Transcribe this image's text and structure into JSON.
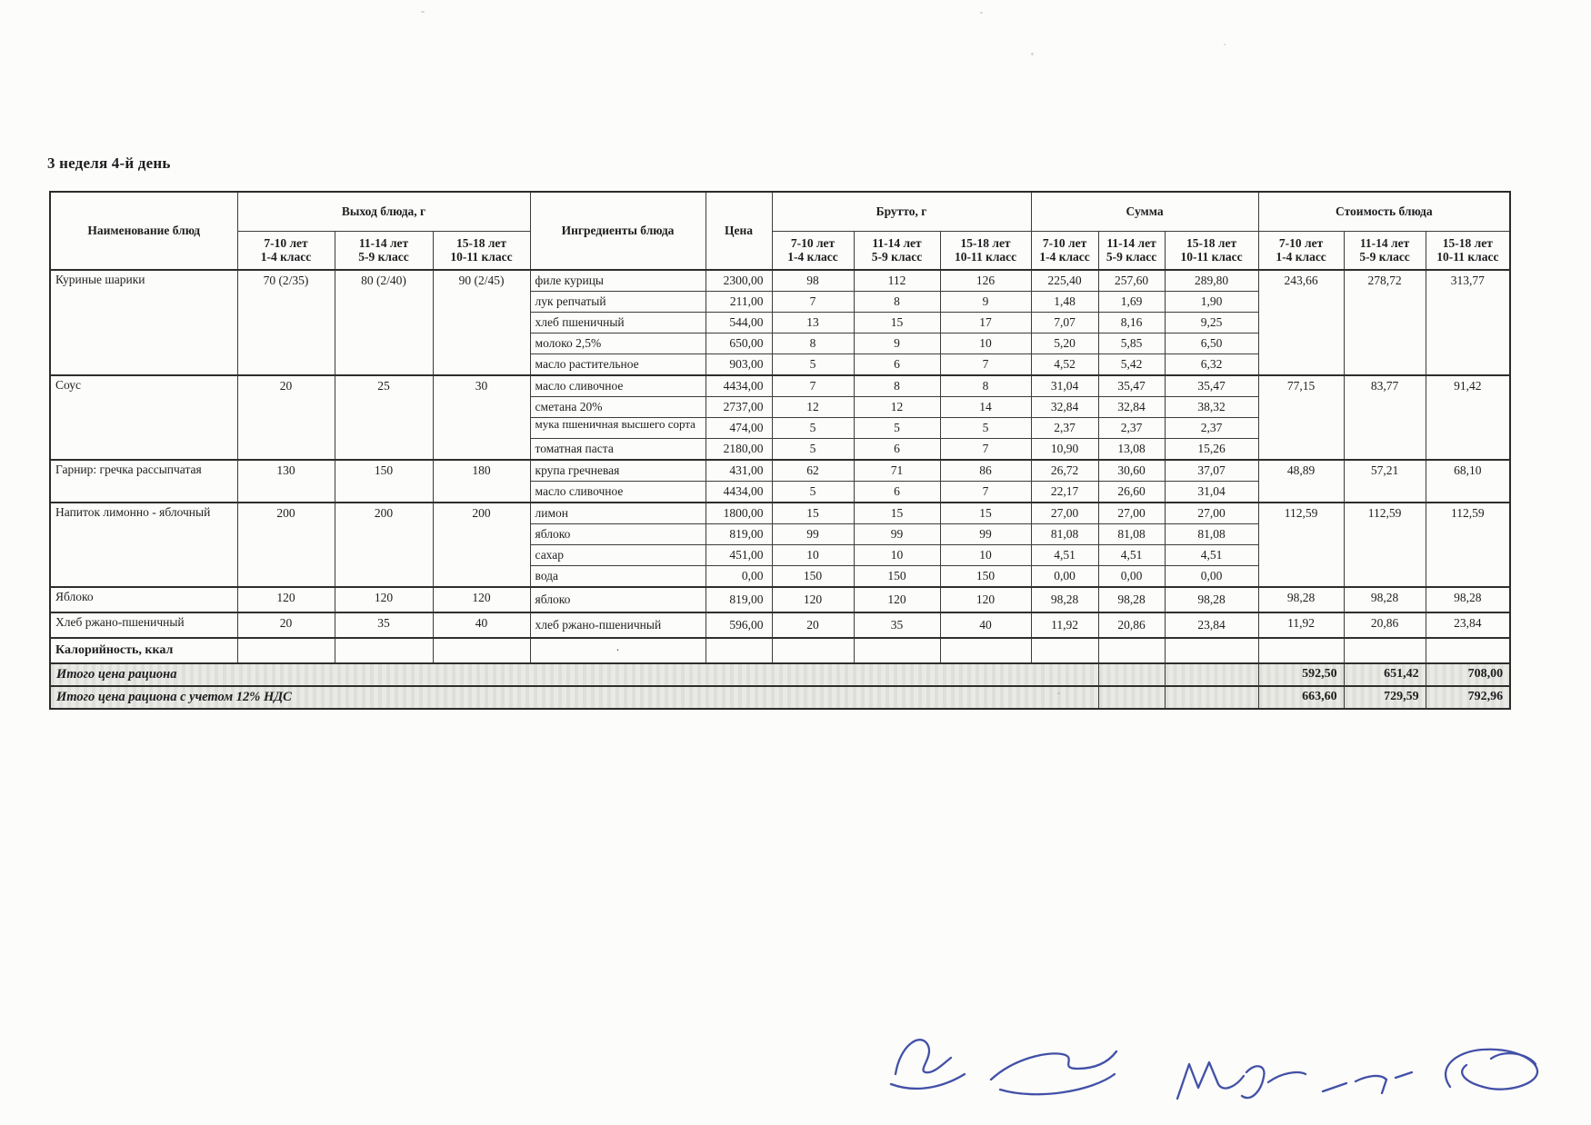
{
  "title": "3 неделя 4-й день",
  "table": {
    "headers": {
      "name": "Наименование блюд",
      "output_group": "Выход блюда, г",
      "ingredients": "Ингредиенты блюда",
      "price": "Цена",
      "brutto_group": "Брутто, г",
      "sum_group": "Сумма",
      "cost_group": "Стоимость блюда",
      "age_cols": [
        {
          "line1": "7-10 лет",
          "line2": "1-4 класс"
        },
        {
          "line1": "11-14 лет",
          "line2": "5-9 класс"
        },
        {
          "line1": "15-18 лет",
          "line2": "10-11 класс"
        }
      ]
    },
    "dishes": [
      {
        "name": "Куриные шарики",
        "output": [
          "70 (2/35)",
          "80 (2/40)",
          "90 (2/45)"
        ],
        "cost": [
          "243,66",
          "278,72",
          "313,77"
        ],
        "ingredients": [
          {
            "name": "филе курицы",
            "price": "2300,00",
            "brutto": [
              "98",
              "112",
              "126"
            ],
            "sum": [
              "225,40",
              "257,60",
              "289,80"
            ]
          },
          {
            "name": "лук репчатый",
            "price": "211,00",
            "brutto": [
              "7",
              "8",
              "9"
            ],
            "sum": [
              "1,48",
              "1,69",
              "1,90"
            ]
          },
          {
            "name": "хлеб пшеничный",
            "price": "544,00",
            "brutto": [
              "13",
              "15",
              "17"
            ],
            "sum": [
              "7,07",
              "8,16",
              "9,25"
            ]
          },
          {
            "name": "молоко 2,5%",
            "price": "650,00",
            "brutto": [
              "8",
              "9",
              "10"
            ],
            "sum": [
              "5,20",
              "5,85",
              "6,50"
            ]
          },
          {
            "name": "масло растительное",
            "price": "903,00",
            "brutto": [
              "5",
              "6",
              "7"
            ],
            "sum": [
              "4,52",
              "5,42",
              "6,32"
            ]
          }
        ]
      },
      {
        "name": "Соус",
        "output": [
          "20",
          "25",
          "30"
        ],
        "cost": [
          "77,15",
          "83,77",
          "91,42"
        ],
        "ingredients": [
          {
            "name": "масло сливочное",
            "price": "4434,00",
            "brutto": [
              "7",
              "8",
              "8"
            ],
            "sum": [
              "31,04",
              "35,47",
              "35,47"
            ]
          },
          {
            "name": "сметана 20%",
            "price": "2737,00",
            "brutto": [
              "12",
              "12",
              "14"
            ],
            "sum": [
              "32,84",
              "32,84",
              "38,32"
            ]
          },
          {
            "name": "мука пшеничная высшего сорта",
            "price": "474,00",
            "brutto": [
              "5",
              "5",
              "5"
            ],
            "sum": [
              "2,37",
              "2,37",
              "2,37"
            ]
          },
          {
            "name": "томатная паста",
            "price": "2180,00",
            "brutto": [
              "5",
              "6",
              "7"
            ],
            "sum": [
              "10,90",
              "13,08",
              "15,26"
            ]
          }
        ]
      },
      {
        "name": "Гарнир: гречка рассыпчатая",
        "output": [
          "130",
          "150",
          "180"
        ],
        "cost": [
          "48,89",
          "57,21",
          "68,10"
        ],
        "ingredients": [
          {
            "name": "крупа гречневая",
            "price": "431,00",
            "brutto": [
              "62",
              "71",
              "86"
            ],
            "sum": [
              "26,72",
              "30,60",
              "37,07"
            ]
          },
          {
            "name": "масло сливочное",
            "price": "4434,00",
            "brutto": [
              "5",
              "6",
              "7"
            ],
            "sum": [
              "22,17",
              "26,60",
              "31,04"
            ]
          }
        ]
      },
      {
        "name": "Напиток лимонно - яблочный",
        "output": [
          "200",
          "200",
          "200"
        ],
        "cost": [
          "112,59",
          "112,59",
          "112,59"
        ],
        "ingredients": [
          {
            "name": "лимон",
            "price": "1800,00",
            "brutto": [
              "15",
              "15",
              "15"
            ],
            "sum": [
              "27,00",
              "27,00",
              "27,00"
            ]
          },
          {
            "name": "яблоко",
            "price": "819,00",
            "brutto": [
              "99",
              "99",
              "99"
            ],
            "sum": [
              "81,08",
              "81,08",
              "81,08"
            ]
          },
          {
            "name": "сахар",
            "price": "451,00",
            "brutto": [
              "10",
              "10",
              "10"
            ],
            "sum": [
              "4,51",
              "4,51",
              "4,51"
            ]
          },
          {
            "name": "вода",
            "price": "0,00",
            "brutto": [
              "150",
              "150",
              "150"
            ],
            "sum": [
              "0,00",
              "0,00",
              "0,00"
            ]
          }
        ]
      },
      {
        "name": "Яблоко",
        "output": [
          "120",
          "120",
          "120"
        ],
        "cost": [
          "98,28",
          "98,28",
          "98,28"
        ],
        "ingredients": [
          {
            "name": "яблоко",
            "price": "819,00",
            "brutto": [
              "120",
              "120",
              "120"
            ],
            "sum": [
              "98,28",
              "98,28",
              "98,28"
            ]
          }
        ]
      },
      {
        "name": "Хлеб ржано-пшеничный",
        "output": [
          "20",
          "35",
          "40"
        ],
        "cost": [
          "11,92",
          "20,86",
          "23,84"
        ],
        "ingredients": [
          {
            "name": "хлеб ржано-пшеничный",
            "price": "596,00",
            "brutto": [
              "20",
              "35",
              "40"
            ],
            "sum": [
              "11,92",
              "20,86",
              "23,84"
            ]
          }
        ]
      }
    ],
    "calories": {
      "label": "Калорийность, ккал",
      "mark": "·"
    },
    "totals": [
      {
        "label": "Итого цена рациона",
        "values": [
          "592,50",
          "651,42",
          "708,00"
        ]
      },
      {
        "label": "Итого цена рациона с учетом 12% НДС",
        "values": [
          "663,60",
          "729,59",
          "792,96"
        ]
      }
    ]
  },
  "ink_color": "#2e3e9f"
}
